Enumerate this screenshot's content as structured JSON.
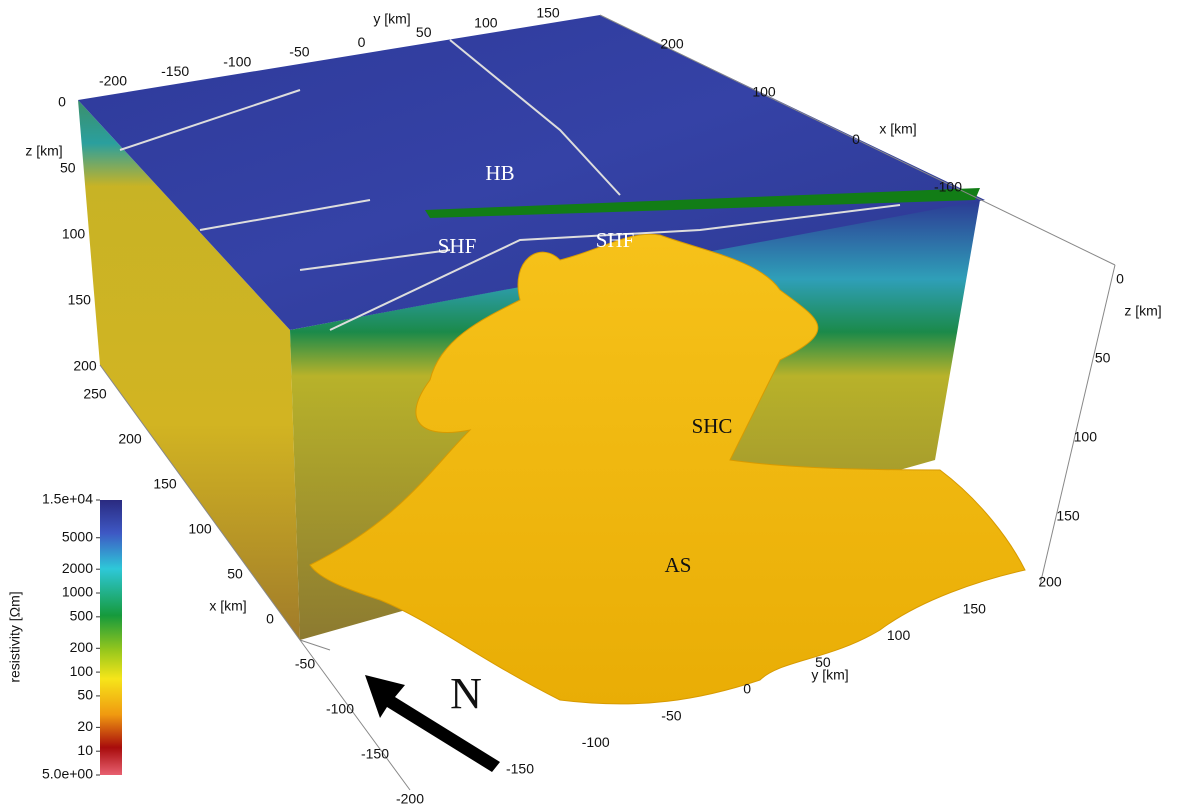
{
  "axes": {
    "y_top": {
      "label": "y [km]",
      "ticks": [
        -200,
        -150,
        -100,
        -50,
        0,
        50,
        100,
        150
      ]
    },
    "x_right": {
      "label": "x [km]",
      "ticks": [
        200,
        100,
        0,
        -100
      ]
    },
    "z_left": {
      "label": "z [km]",
      "ticks": [
        0,
        50,
        100,
        150,
        200
      ]
    },
    "z_right": {
      "label": "z [km]",
      "ticks": [
        0,
        50,
        100,
        150
      ]
    },
    "x_left": {
      "label": "x [km]",
      "ticks": [
        250,
        200,
        150,
        100,
        50,
        0,
        -50,
        -100,
        -150,
        -200
      ]
    },
    "y_bottom": {
      "label": "y [km]",
      "ticks": [
        -150,
        -100,
        -50,
        0,
        50,
        100,
        150,
        200
      ]
    }
  },
  "annotations": [
    "HB",
    "SHF",
    "SHF",
    "SHC",
    "AS"
  ],
  "north_label": "N",
  "colorbar": {
    "label": "resistivity [Ωm]",
    "ticks": [
      {
        "value": 15000,
        "label": "1.5e+04"
      },
      5000,
      2000,
      1000,
      500,
      200,
      100,
      50,
      20,
      10,
      {
        "value": 5,
        "label": "5.0e+00"
      }
    ]
  }
}
